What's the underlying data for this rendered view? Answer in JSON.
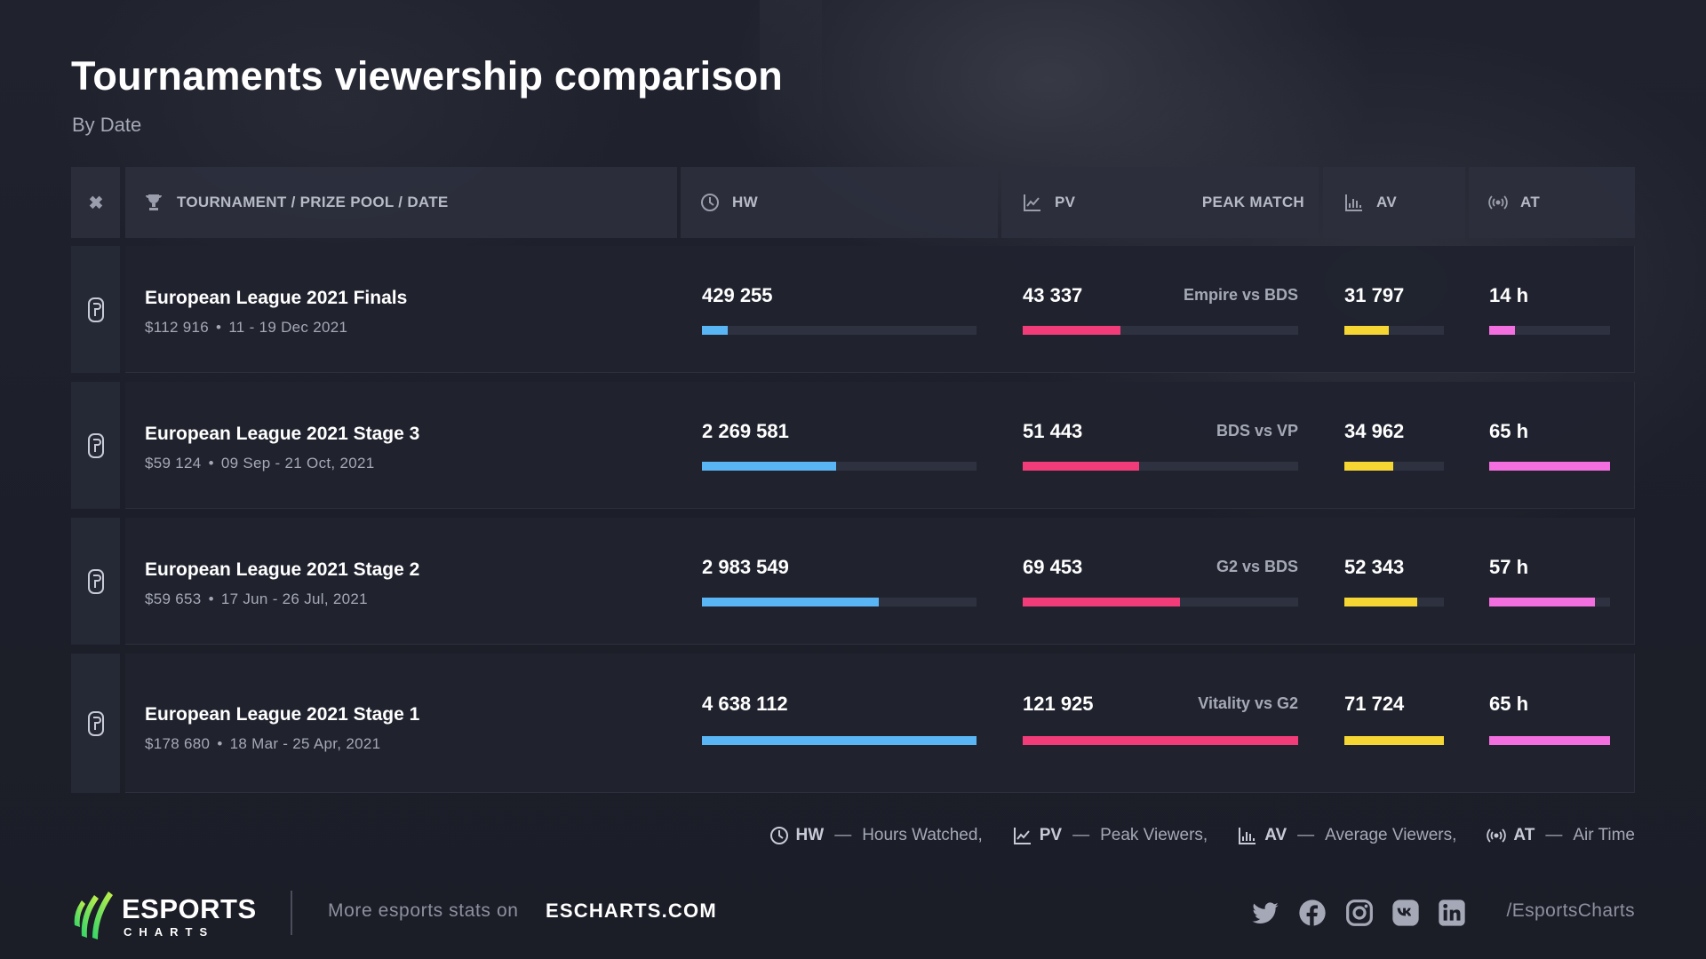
{
  "header": {
    "title": "Tournaments viewership comparison",
    "subtitle": "By Date"
  },
  "columns": {
    "tournament": "TOURNAMENT / PRIZE POOL / DATE",
    "hw": "HW",
    "pv": "PV",
    "peak_match": "PEAK MATCH",
    "av": "AV",
    "at": "AT"
  },
  "icons": {
    "game_column": "gamepad-icon",
    "tournament_column": "trophy-icon",
    "hw_column": "clock-icon",
    "pv_column": "line-chart-icon",
    "av_column": "bar-chart-icon",
    "at_column": "broadcast-icon",
    "row_game": "rainbow-six-logo-icon"
  },
  "colors": {
    "hw": "#5ab5f5",
    "pv": "#f23c79",
    "av": "#f6d632",
    "at": "#f36fdf"
  },
  "chart_data": {
    "type": "table",
    "rows": [
      {
        "name": "European League 2021 Finals",
        "prize": "$112 916",
        "dates": "11 - 19 Dec 2021",
        "hw_label": "429 255",
        "hw": 429255,
        "pv_label": "43 337",
        "pv": 43337,
        "peak_match": "Empire vs BDS",
        "av_label": "31 797",
        "av": 31797,
        "at_label": "14 h",
        "at": 14
      },
      {
        "name": "European League 2021 Stage 3",
        "prize": "$59 124",
        "dates": "09 Sep - 21 Oct, 2021",
        "hw_label": "2 269 581",
        "hw": 2269581,
        "pv_label": "51 443",
        "pv": 51443,
        "peak_match": "BDS vs VP",
        "av_label": "34 962",
        "av": 34962,
        "at_label": "65 h",
        "at": 65
      },
      {
        "name": "European League 2021 Stage 2",
        "prize": "$59 653",
        "dates": "17 Jun - 26 Jul, 2021",
        "hw_label": "2 983 549",
        "hw": 2983549,
        "pv_label": "69 453",
        "pv": 69453,
        "peak_match": "G2 vs BDS",
        "av_label": "52 343",
        "av": 52343,
        "at_label": "57 h",
        "at": 57
      },
      {
        "name": "European League 2021 Stage 1",
        "prize": "$178 680",
        "dates": "18 Mar - 25 Apr, 2021",
        "hw_label": "4 638 112",
        "hw": 4638112,
        "pv_label": "121 925",
        "pv": 121925,
        "peak_match": "Vitality vs G2",
        "av_label": "71 724",
        "av": 71724,
        "at_label": "65 h",
        "at": 65
      }
    ]
  },
  "legend": [
    {
      "abbr": "HW",
      "text": "Hours Watched,",
      "icon": "clock-icon"
    },
    {
      "abbr": "PV",
      "text": "Peak Viewers,",
      "icon": "line-chart-icon"
    },
    {
      "abbr": "AV",
      "text": "Average Viewers,",
      "icon": "bar-chart-icon"
    },
    {
      "abbr": "AT",
      "text": "Air Time",
      "icon": "broadcast-icon"
    }
  ],
  "footer": {
    "logo_word": "ESPORTS",
    "logo_sub": "CHARTS",
    "more_text": "More esports stats on",
    "link": "ESCHARTS.COM",
    "handle": "/EsportsCharts",
    "social": [
      "twitter-icon",
      "facebook-icon",
      "instagram-icon",
      "vk-icon",
      "linkedin-icon"
    ]
  }
}
